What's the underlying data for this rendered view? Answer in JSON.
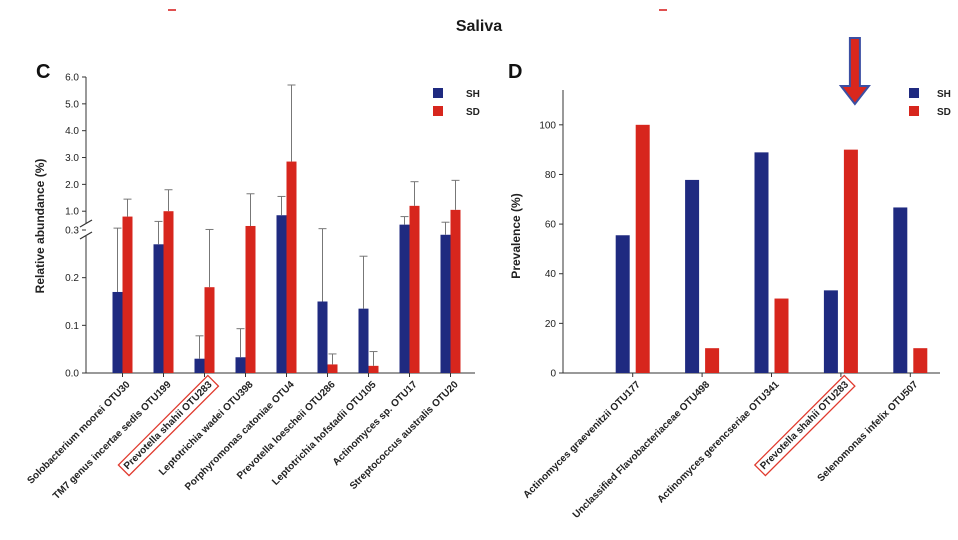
{
  "figure_title": "Saliva",
  "colors": {
    "SH": "#1f2a80",
    "SD": "#d7261d",
    "highlight": "#e03a2e",
    "arrow_fill": "#d9271d",
    "arrow_stroke": "#3b4fa3"
  },
  "chart_data": [
    {
      "panel": "C",
      "type": "bar",
      "ylabel": "Relative abundance (%)",
      "broken_axis": true,
      "ylim_lower": [
        0,
        0.3
      ],
      "ylim_upper": [
        0.3,
        6.0
      ],
      "yticks_lower": [
        "0.0",
        "0.1",
        "0.2"
      ],
      "yticks_upper": [
        "0.3",
        "1.0",
        "2.0",
        "3.0",
        "4.0",
        "5.0",
        "6.0"
      ],
      "legend": [
        "SH",
        "SD"
      ],
      "legend_position": "top-right",
      "highlighted_category": "Prevotella shahii OTU283",
      "categories": [
        "Solobacterium moorei OTU30",
        "TM7 genus incertae sedis OTU199",
        "Prevotella shahii OTU283",
        "Leptotrichia wadei OTU398",
        "Porphyromonas catoniae OTU4",
        "Prevotella loescheii OTU286",
        "Leptotrichia hofstadii OTU105",
        "Actinomyces sp. OTU17",
        "Streptococcus australis OTU20"
      ],
      "series": [
        {
          "name": "SH",
          "values": [
            0.17,
            0.27,
            0.03,
            0.033,
            0.85,
            0.15,
            0.135,
            0.5,
            0.29
          ],
          "errors": [
            0.2,
            0.35,
            0.048,
            0.06,
            0.7,
            0.2,
            0.11,
            0.3,
            0.3
          ]
        },
        {
          "name": "SD",
          "values": [
            0.8,
            1.0,
            0.18,
            0.45,
            2.85,
            0.018,
            0.015,
            1.2,
            1.05
          ],
          "errors": [
            0.65,
            0.8,
            0.14,
            1.2,
            2.9,
            0.022,
            0.03,
            0.9,
            1.1
          ]
        }
      ]
    },
    {
      "panel": "D",
      "type": "bar",
      "ylabel": "Prevalence (%)",
      "ylim": [
        0,
        110
      ],
      "yticks": [
        "0",
        "20",
        "40",
        "60",
        "80",
        "100"
      ],
      "legend": [
        "SH",
        "SD"
      ],
      "legend_position": "top-right",
      "highlighted_category": "Prevotella shahii OTU283",
      "arrow_marker": "Prevotella shahii OTU283",
      "categories": [
        "Actinomyces graevenitzii OTU177",
        "Unclassified Flavobacteriaceae OTU498",
        "Actinomyces gerencseriae OTU341",
        "Prevotella shahii OTU283",
        "Selenomonas infelix OTU507"
      ],
      "series": [
        {
          "name": "SH",
          "values": [
            55.5,
            77.8,
            88.9,
            33.3,
            66.7
          ]
        },
        {
          "name": "SD",
          "values": [
            100,
            10,
            30,
            90,
            10
          ]
        }
      ]
    }
  ]
}
